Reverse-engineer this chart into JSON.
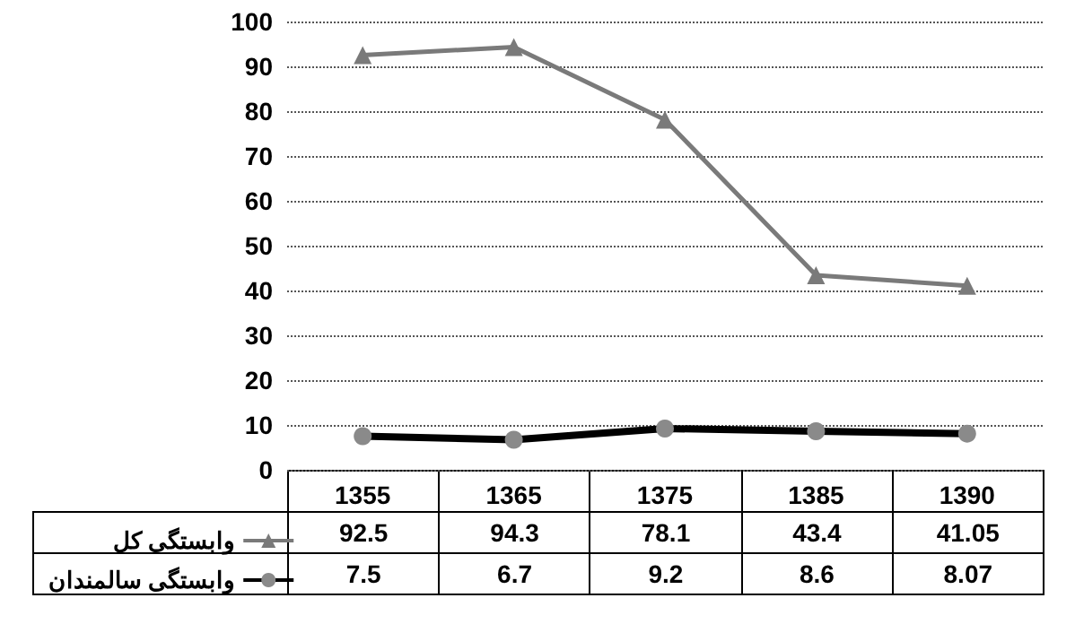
{
  "chart_data": {
    "type": "line",
    "categories": [
      "1355",
      "1365",
      "1375",
      "1385",
      "1390"
    ],
    "series": [
      {
        "name": "وابستگی کل",
        "color": "#7a7a7a",
        "marker": "triangle",
        "values": [
          92.5,
          94.3,
          78.1,
          43.4,
          41.05
        ]
      },
      {
        "name": "وابستگی سالمندان",
        "color": "#000000",
        "marker": "circle",
        "values": [
          7.5,
          6.7,
          9.2,
          8.6,
          8.07
        ]
      }
    ],
    "ylim": [
      0,
      100
    ],
    "yticks": [
      0,
      10,
      20,
      30,
      40,
      50,
      60,
      70,
      80,
      90,
      100
    ],
    "grid": "y",
    "legend": "bottom left",
    "data_labels": true,
    "line_style": "solid"
  }
}
